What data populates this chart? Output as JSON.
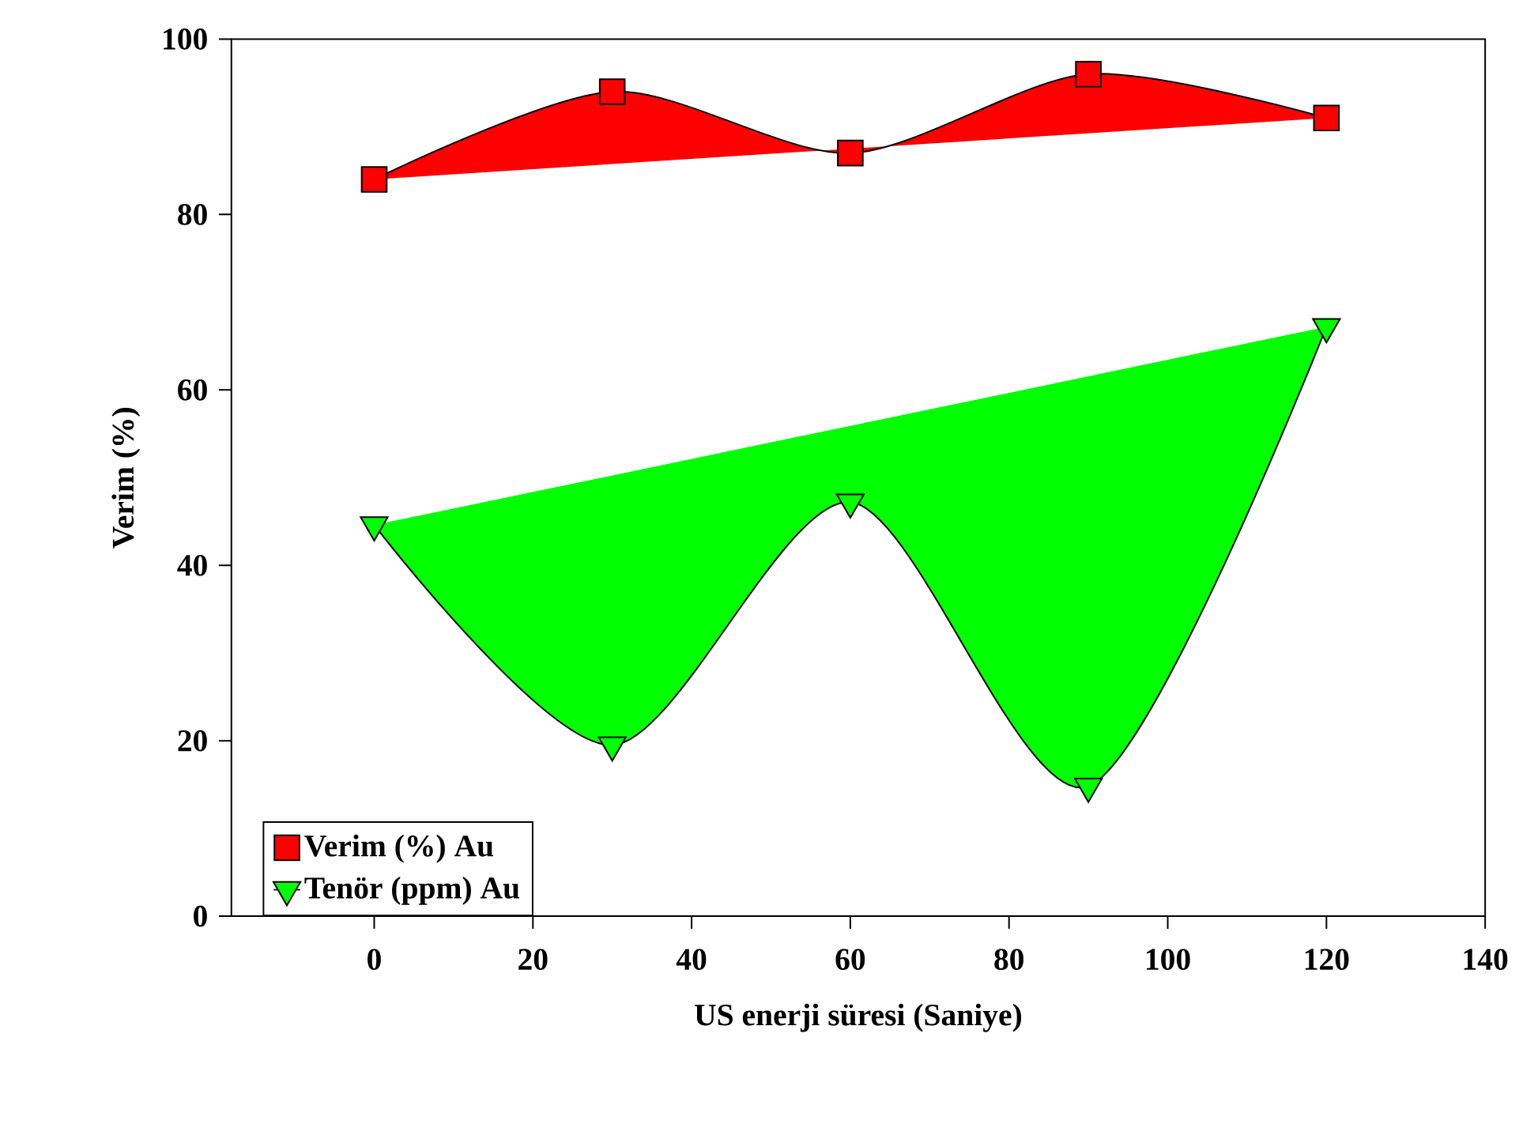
{
  "chart_data": {
    "type": "line",
    "xlabel": "US enerji süresi (Saniye)",
    "ylabel": "Verim (%)",
    "x": [
      0,
      30,
      60,
      90,
      120
    ],
    "series": [
      {
        "name": "Verim (%) Au",
        "color": "#ff0000",
        "marker": "square",
        "values": [
          84,
          94,
          87,
          96,
          91
        ]
      },
      {
        "name": "Tenör (ppm) Au",
        "color": "#00ff00",
        "marker": "triangle-down",
        "values": [
          44.6,
          19.5,
          47.2,
          14.8,
          67.2
        ]
      }
    ],
    "xlim": [
      -18,
      140
    ],
    "ylim": [
      0,
      100
    ],
    "xticks": [
      0,
      20,
      40,
      60,
      80,
      100,
      120,
      140
    ],
    "yticks": [
      0,
      20,
      40,
      60,
      80,
      100
    ],
    "legend": "bottom left",
    "grid": false
  }
}
